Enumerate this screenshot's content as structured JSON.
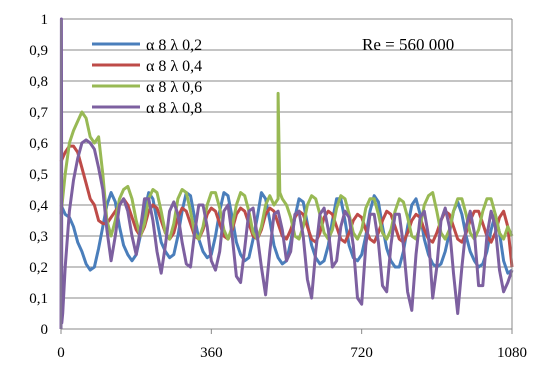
{
  "chart_data": {
    "type": "line",
    "title": "",
    "xlabel": "",
    "ylabel": "",
    "xlim": [
      0,
      1080
    ],
    "ylim": [
      0,
      1
    ],
    "x_ticks": [
      "0",
      "360",
      "720",
      "1080"
    ],
    "y_ticks": [
      "0",
      "0,1",
      "0,2",
      "0,3",
      "0,4",
      "0,5",
      "0,6",
      "0,7",
      "0,8",
      "0,9",
      "1"
    ],
    "grid": "horizontal",
    "legend_position": "top-left",
    "annotation": "Re = 560 000",
    "series": [
      {
        "name": "α 8 λ 0,2",
        "color": "#4a7ebb",
        "x": [
          0,
          10,
          20,
          30,
          40,
          50,
          60,
          70,
          80,
          90,
          100,
          110,
          120,
          130,
          140,
          150,
          160,
          170,
          180,
          190,
          200,
          210,
          220,
          230,
          240,
          250,
          260,
          270,
          280,
          290,
          300,
          310,
          320,
          330,
          340,
          350,
          360,
          370,
          380,
          390,
          400,
          410,
          420,
          430,
          440,
          450,
          460,
          470,
          480,
          490,
          500,
          510,
          520,
          530,
          540,
          550,
          560,
          570,
          580,
          590,
          600,
          610,
          620,
          630,
          640,
          650,
          660,
          670,
          680,
          690,
          700,
          710,
          720,
          730,
          740,
          750,
          760,
          770,
          780,
          790,
          800,
          810,
          820,
          830,
          840,
          850,
          860,
          870,
          880,
          890,
          900,
          910,
          920,
          930,
          940,
          950,
          960,
          970,
          980,
          990,
          1000,
          1010,
          1020,
          1030,
          1040,
          1050,
          1060,
          1070,
          1080
        ],
        "y": [
          0.4,
          0.37,
          0.36,
          0.33,
          0.28,
          0.25,
          0.21,
          0.19,
          0.2,
          0.26,
          0.33,
          0.4,
          0.44,
          0.41,
          0.33,
          0.27,
          0.24,
          0.22,
          0.24,
          0.3,
          0.38,
          0.44,
          0.42,
          0.35,
          0.28,
          0.25,
          0.23,
          0.24,
          0.3,
          0.38,
          0.44,
          0.43,
          0.36,
          0.29,
          0.25,
          0.23,
          0.24,
          0.3,
          0.38,
          0.44,
          0.43,
          0.36,
          0.28,
          0.24,
          0.22,
          0.23,
          0.29,
          0.36,
          0.44,
          0.42,
          0.35,
          0.27,
          0.23,
          0.21,
          0.22,
          0.28,
          0.36,
          0.42,
          0.41,
          0.34,
          0.27,
          0.23,
          0.21,
          0.22,
          0.27,
          0.35,
          0.42,
          0.42,
          0.35,
          0.27,
          0.23,
          0.22,
          0.24,
          0.3,
          0.38,
          0.43,
          0.41,
          0.33,
          0.26,
          0.22,
          0.2,
          0.2,
          0.25,
          0.33,
          0.4,
          0.42,
          0.37,
          0.29,
          0.24,
          0.21,
          0.2,
          0.21,
          0.25,
          0.31,
          0.38,
          0.41,
          0.37,
          0.3,
          0.25,
          0.22,
          0.2,
          0.21,
          0.25,
          0.32,
          0.37,
          0.31,
          0.22,
          0.18,
          0.19
        ]
      },
      {
        "name": "α 8 λ 0,4",
        "color": "#be4b48",
        "x": [
          0,
          10,
          20,
          30,
          40,
          50,
          60,
          70,
          80,
          90,
          100,
          110,
          120,
          130,
          140,
          150,
          160,
          170,
          180,
          190,
          200,
          210,
          220,
          230,
          240,
          250,
          260,
          270,
          280,
          290,
          300,
          310,
          320,
          330,
          340,
          350,
          360,
          370,
          380,
          390,
          400,
          410,
          420,
          430,
          440,
          450,
          460,
          470,
          480,
          490,
          500,
          510,
          520,
          530,
          540,
          550,
          560,
          570,
          580,
          590,
          600,
          610,
          620,
          630,
          640,
          650,
          660,
          670,
          680,
          690,
          700,
          710,
          720,
          730,
          740,
          750,
          760,
          770,
          780,
          790,
          800,
          810,
          820,
          830,
          840,
          850,
          860,
          870,
          880,
          890,
          900,
          910,
          920,
          930,
          940,
          950,
          960,
          970,
          980,
          990,
          1000,
          1010,
          1020,
          1030,
          1040,
          1050,
          1060,
          1070,
          1080
        ],
        "y": [
          0.54,
          0.57,
          0.59,
          0.59,
          0.57,
          0.52,
          0.47,
          0.42,
          0.4,
          0.35,
          0.34,
          0.34,
          0.36,
          0.38,
          0.4,
          0.42,
          0.4,
          0.36,
          0.32,
          0.3,
          0.33,
          0.38,
          0.4,
          0.39,
          0.35,
          0.31,
          0.29,
          0.31,
          0.36,
          0.39,
          0.38,
          0.34,
          0.3,
          0.29,
          0.32,
          0.37,
          0.39,
          0.38,
          0.34,
          0.3,
          0.29,
          0.32,
          0.37,
          0.39,
          0.38,
          0.34,
          0.3,
          0.29,
          0.32,
          0.37,
          0.39,
          0.38,
          0.34,
          0.3,
          0.29,
          0.32,
          0.36,
          0.38,
          0.37,
          0.33,
          0.29,
          0.28,
          0.31,
          0.36,
          0.38,
          0.37,
          0.33,
          0.29,
          0.28,
          0.31,
          0.35,
          0.37,
          0.36,
          0.32,
          0.29,
          0.28,
          0.31,
          0.35,
          0.38,
          0.37,
          0.33,
          0.29,
          0.28,
          0.31,
          0.35,
          0.37,
          0.36,
          0.32,
          0.29,
          0.28,
          0.31,
          0.35,
          0.38,
          0.37,
          0.33,
          0.29,
          0.28,
          0.31,
          0.35,
          0.38,
          0.38,
          0.34,
          0.3,
          0.28,
          0.31,
          0.36,
          0.38,
          0.33,
          0.2
        ]
      },
      {
        "name": "α 8 λ 0,6",
        "color": "#98b954",
        "x": [
          0,
          10,
          20,
          30,
          40,
          50,
          60,
          70,
          80,
          90,
          100,
          110,
          120,
          130,
          140,
          150,
          160,
          170,
          180,
          190,
          200,
          210,
          220,
          230,
          240,
          250,
          260,
          270,
          280,
          290,
          300,
          310,
          320,
          330,
          340,
          350,
          360,
          370,
          380,
          390,
          400,
          410,
          420,
          430,
          440,
          450,
          460,
          470,
          480,
          490,
          500,
          510,
          520,
          520,
          524,
          530,
          540,
          550,
          560,
          570,
          580,
          590,
          600,
          610,
          620,
          630,
          640,
          650,
          660,
          670,
          680,
          690,
          700,
          710,
          720,
          730,
          740,
          750,
          760,
          770,
          780,
          790,
          800,
          810,
          820,
          830,
          840,
          850,
          860,
          870,
          880,
          890,
          900,
          910,
          920,
          930,
          940,
          950,
          960,
          970,
          980,
          990,
          1000,
          1010,
          1020,
          1030,
          1040,
          1050,
          1060,
          1070,
          1080
        ],
        "y": [
          0.37,
          0.5,
          0.6,
          0.64,
          0.67,
          0.7,
          0.68,
          0.62,
          0.6,
          0.62,
          0.5,
          0.35,
          0.3,
          0.35,
          0.42,
          0.45,
          0.46,
          0.42,
          0.35,
          0.3,
          0.34,
          0.42,
          0.45,
          0.44,
          0.38,
          0.31,
          0.29,
          0.34,
          0.42,
          0.45,
          0.44,
          0.38,
          0.31,
          0.29,
          0.33,
          0.4,
          0.44,
          0.44,
          0.39,
          0.32,
          0.29,
          0.33,
          0.4,
          0.44,
          0.43,
          0.38,
          0.31,
          0.29,
          0.33,
          0.4,
          0.43,
          0.4,
          0.42,
          0.76,
          0.44,
          0.42,
          0.4,
          0.36,
          0.3,
          0.29,
          0.33,
          0.4,
          0.43,
          0.42,
          0.37,
          0.31,
          0.29,
          0.32,
          0.39,
          0.43,
          0.42,
          0.37,
          0.31,
          0.29,
          0.32,
          0.39,
          0.42,
          0.42,
          0.37,
          0.31,
          0.29,
          0.32,
          0.38,
          0.42,
          0.41,
          0.36,
          0.3,
          0.29,
          0.33,
          0.4,
          0.43,
          0.44,
          0.38,
          0.31,
          0.29,
          0.32,
          0.38,
          0.42,
          0.42,
          0.37,
          0.31,
          0.29,
          0.32,
          0.38,
          0.42,
          0.42,
          0.37,
          0.31,
          0.29,
          0.33,
          0.3
        ]
      },
      {
        "name": "α 8 λ 0,8",
        "color": "#7d60a0",
        "x": [
          0,
          1,
          2,
          4,
          10,
          20,
          30,
          40,
          50,
          60,
          70,
          80,
          90,
          100,
          110,
          120,
          130,
          140,
          150,
          160,
          170,
          180,
          190,
          200,
          210,
          220,
          230,
          240,
          250,
          260,
          270,
          280,
          290,
          300,
          310,
          320,
          330,
          340,
          350,
          360,
          370,
          380,
          390,
          400,
          410,
          420,
          430,
          440,
          450,
          460,
          470,
          480,
          490,
          500,
          510,
          520,
          530,
          540,
          550,
          560,
          570,
          580,
          590,
          600,
          610,
          620,
          630,
          640,
          650,
          660,
          670,
          680,
          690,
          700,
          710,
          720,
          730,
          740,
          750,
          760,
          770,
          780,
          790,
          800,
          810,
          820,
          830,
          840,
          850,
          860,
          870,
          880,
          890,
          900,
          910,
          920,
          930,
          940,
          950,
          960,
          970,
          980,
          990,
          1000,
          1010,
          1020,
          1030,
          1040,
          1050,
          1060,
          1070,
          1080
        ],
        "y": [
          0,
          1,
          0.02,
          0.05,
          0.2,
          0.38,
          0.48,
          0.55,
          0.6,
          0.61,
          0.6,
          0.58,
          0.52,
          0.45,
          0.32,
          0.22,
          0.3,
          0.4,
          0.42,
          0.38,
          0.3,
          0.24,
          0.32,
          0.42,
          0.42,
          0.35,
          0.25,
          0.18,
          0.27,
          0.38,
          0.41,
          0.37,
          0.28,
          0.21,
          0.2,
          0.31,
          0.4,
          0.4,
          0.33,
          0.22,
          0.19,
          0.25,
          0.38,
          0.4,
          0.3,
          0.17,
          0.15,
          0.26,
          0.38,
          0.39,
          0.3,
          0.2,
          0.11,
          0.25,
          0.37,
          0.38,
          0.32,
          0.22,
          0.25,
          0.37,
          0.38,
          0.3,
          0.16,
          0.1,
          0.25,
          0.37,
          0.39,
          0.32,
          0.2,
          0.22,
          0.33,
          0.38,
          0.36,
          0.27,
          0.1,
          0.08,
          0.27,
          0.37,
          0.37,
          0.28,
          0.14,
          0.12,
          0.27,
          0.37,
          0.37,
          0.27,
          0.12,
          0.06,
          0.24,
          0.36,
          0.38,
          0.3,
          0.1,
          0.2,
          0.35,
          0.39,
          0.33,
          0.18,
          0.05,
          0.2,
          0.33,
          0.38,
          0.31,
          0.14,
          0.14,
          0.3,
          0.38,
          0.33,
          0.19,
          0.12,
          0.15,
          0.19
        ]
      }
    ]
  }
}
